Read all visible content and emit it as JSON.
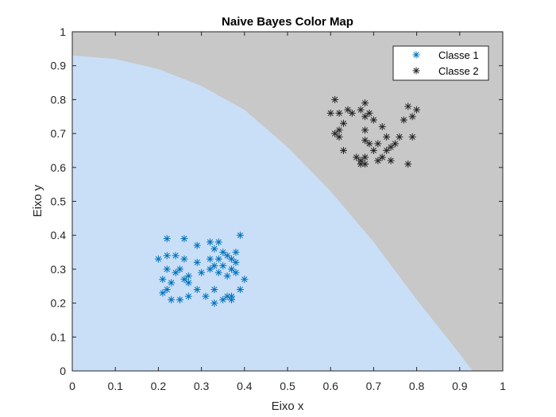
{
  "chart_data": {
    "type": "scatter",
    "title": "Naive Bayes Color Map",
    "xlabel": "Eixo x",
    "ylabel": "Eixo y",
    "xlim": [
      0,
      1
    ],
    "ylim": [
      0,
      1
    ],
    "xticks": [
      "0",
      "0.1",
      "0.2",
      "0.3",
      "0.4",
      "0.5",
      "0.6",
      "0.7",
      "0.8",
      "0.9",
      "1"
    ],
    "yticks": [
      "0",
      "0.1",
      "0.2",
      "0.3",
      "0.4",
      "0.5",
      "0.6",
      "0.7",
      "0.8",
      "0.9",
      "1"
    ],
    "grid": false,
    "legend_position": "top-right",
    "regions": [
      {
        "class": "Classe 1",
        "color": "#c9dff7"
      },
      {
        "class": "Classe 2",
        "color": "#c8c8c8"
      }
    ],
    "boundary": [
      [
        0,
        0.93
      ],
      [
        0.1,
        0.92
      ],
      [
        0.2,
        0.89
      ],
      [
        0.3,
        0.84
      ],
      [
        0.4,
        0.77
      ],
      [
        0.5,
        0.66
      ],
      [
        0.6,
        0.53
      ],
      [
        0.7,
        0.38
      ],
      [
        0.8,
        0.21
      ],
      [
        0.9,
        0.05
      ],
      [
        0.93,
        0
      ]
    ],
    "series": [
      {
        "name": "Classe 1",
        "color": "#0072bd",
        "marker": "asterisk",
        "points": [
          [
            0.22,
            0.39
          ],
          [
            0.26,
            0.39
          ],
          [
            0.29,
            0.37
          ],
          [
            0.32,
            0.38
          ],
          [
            0.34,
            0.38
          ],
          [
            0.39,
            0.4
          ],
          [
            0.33,
            0.36
          ],
          [
            0.35,
            0.35
          ],
          [
            0.38,
            0.35
          ],
          [
            0.36,
            0.34
          ],
          [
            0.2,
            0.33
          ],
          [
            0.22,
            0.34
          ],
          [
            0.24,
            0.34
          ],
          [
            0.26,
            0.33
          ],
          [
            0.29,
            0.32
          ],
          [
            0.32,
            0.33
          ],
          [
            0.34,
            0.33
          ],
          [
            0.37,
            0.33
          ],
          [
            0.38,
            0.32
          ],
          [
            0.33,
            0.31
          ],
          [
            0.35,
            0.31
          ],
          [
            0.37,
            0.3
          ],
          [
            0.22,
            0.3
          ],
          [
            0.24,
            0.29
          ],
          [
            0.25,
            0.3
          ],
          [
            0.27,
            0.28
          ],
          [
            0.3,
            0.29
          ],
          [
            0.32,
            0.3
          ],
          [
            0.34,
            0.29
          ],
          [
            0.36,
            0.28
          ],
          [
            0.38,
            0.29
          ],
          [
            0.4,
            0.27
          ],
          [
            0.21,
            0.27
          ],
          [
            0.23,
            0.26
          ],
          [
            0.26,
            0.27
          ],
          [
            0.27,
            0.26
          ],
          [
            0.29,
            0.24
          ],
          [
            0.33,
            0.24
          ],
          [
            0.36,
            0.22
          ],
          [
            0.37,
            0.22
          ],
          [
            0.39,
            0.24
          ],
          [
            0.21,
            0.23
          ],
          [
            0.22,
            0.24
          ],
          [
            0.23,
            0.21
          ],
          [
            0.25,
            0.21
          ],
          [
            0.27,
            0.22
          ],
          [
            0.31,
            0.22
          ],
          [
            0.33,
            0.2
          ],
          [
            0.35,
            0.21
          ],
          [
            0.37,
            0.21
          ]
        ]
      },
      {
        "name": "Classe 2",
        "color": "#262626",
        "marker": "asterisk",
        "points": [
          [
            0.61,
            0.8
          ],
          [
            0.68,
            0.79
          ],
          [
            0.64,
            0.77
          ],
          [
            0.67,
            0.77
          ],
          [
            0.69,
            0.76
          ],
          [
            0.78,
            0.78
          ],
          [
            0.8,
            0.77
          ],
          [
            0.6,
            0.76
          ],
          [
            0.62,
            0.76
          ],
          [
            0.65,
            0.76
          ],
          [
            0.68,
            0.75
          ],
          [
            0.7,
            0.74
          ],
          [
            0.72,
            0.72
          ],
          [
            0.77,
            0.74
          ],
          [
            0.79,
            0.75
          ],
          [
            0.63,
            0.73
          ],
          [
            0.62,
            0.71
          ],
          [
            0.68,
            0.71
          ],
          [
            0.61,
            0.7
          ],
          [
            0.62,
            0.69
          ],
          [
            0.73,
            0.69
          ],
          [
            0.76,
            0.69
          ],
          [
            0.79,
            0.69
          ],
          [
            0.68,
            0.68
          ],
          [
            0.69,
            0.67
          ],
          [
            0.71,
            0.67
          ],
          [
            0.74,
            0.66
          ],
          [
            0.75,
            0.67
          ],
          [
            0.63,
            0.65
          ],
          [
            0.7,
            0.65
          ],
          [
            0.73,
            0.65
          ],
          [
            0.66,
            0.63
          ],
          [
            0.68,
            0.63
          ],
          [
            0.67,
            0.62
          ],
          [
            0.71,
            0.62
          ],
          [
            0.72,
            0.63
          ],
          [
            0.74,
            0.62
          ],
          [
            0.78,
            0.61
          ],
          [
            0.67,
            0.61
          ],
          [
            0.68,
            0.61
          ]
        ]
      }
    ]
  }
}
